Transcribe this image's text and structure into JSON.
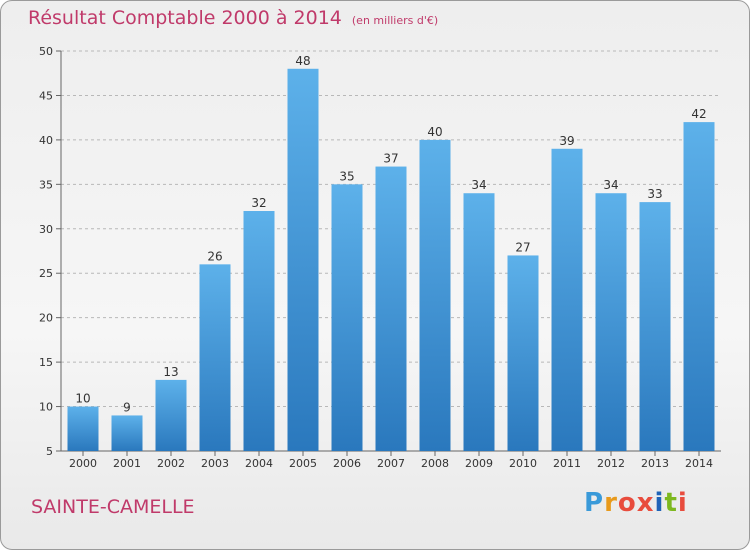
{
  "chart_data": {
    "type": "bar",
    "title": "Résultat Comptable 2000 à 2014",
    "subtitle": "(en milliers d'€)",
    "categories": [
      "2000",
      "2001",
      "2002",
      "2003",
      "2004",
      "2005",
      "2006",
      "2007",
      "2008",
      "2009",
      "2010",
      "2011",
      "2012",
      "2013",
      "2014"
    ],
    "values": [
      10,
      9,
      13,
      26,
      32,
      48,
      35,
      37,
      40,
      34,
      27,
      39,
      34,
      33,
      42
    ],
    "ylim": [
      5,
      50
    ],
    "yticks": [
      5,
      10,
      15,
      20,
      25,
      30,
      35,
      40,
      45,
      50
    ],
    "xlabel": "",
    "ylabel": "",
    "grid": true,
    "bar_color": "#3d8fd6"
  },
  "footer": {
    "commune": "SAINTE-CAMELLE",
    "logo": [
      "P",
      "r",
      "o",
      "x",
      "i",
      "t",
      "i"
    ],
    "logo_colors": [
      "#3a9ad9",
      "#e89a1c",
      "#e84c3d",
      "#e84c3d",
      "#1f63b8",
      "#7db81f",
      "#e84c3d"
    ]
  }
}
